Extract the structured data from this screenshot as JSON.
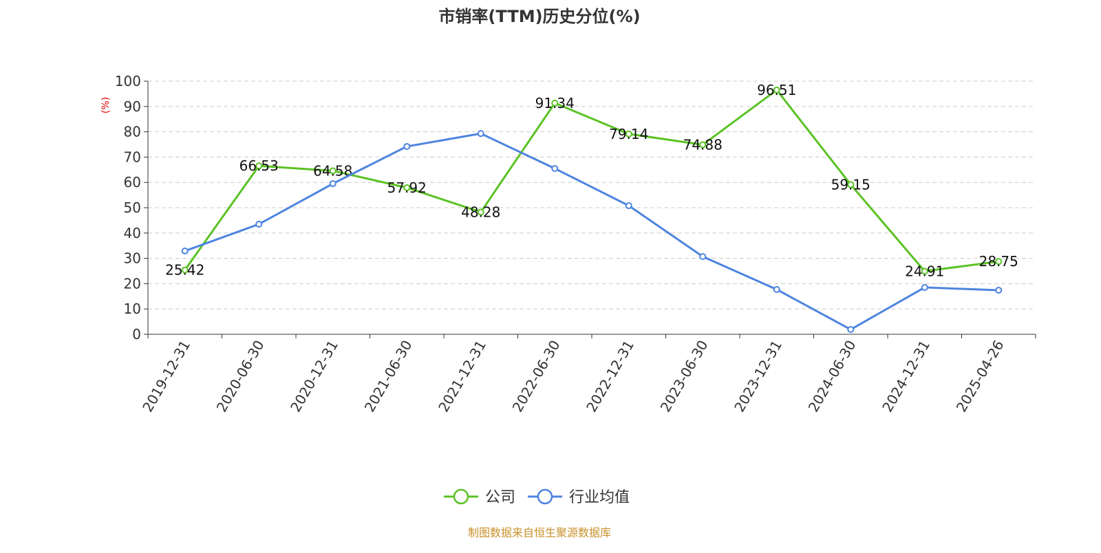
{
  "chart_data": {
    "type": "line",
    "title": "市销率(TTM)历史分位(%)",
    "ylabel": "(%)",
    "xlabel": "",
    "ylim": [
      0,
      100
    ],
    "yticks": [
      0,
      10,
      20,
      30,
      40,
      50,
      60,
      70,
      80,
      90,
      100
    ],
    "grid": true,
    "legend_position": "bottom-center",
    "categories": [
      "2019-12-31",
      "2020-06-30",
      "2020-12-31",
      "2021-06-30",
      "2021-12-31",
      "2022-06-30",
      "2022-12-31",
      "2023-06-30",
      "2023-12-31",
      "2024-06-30",
      "2024-12-31",
      "2025-04-26"
    ],
    "series": [
      {
        "name": "公司",
        "color": "#5bc224",
        "show_labels": true,
        "values": [
          25.42,
          66.53,
          64.58,
          57.92,
          48.28,
          91.34,
          79.14,
          74.88,
          96.51,
          59.15,
          24.91,
          28.75
        ]
      },
      {
        "name": "行业均值",
        "color": "#4d84e0",
        "show_labels": false,
        "values": [
          32.9,
          43.5,
          59.5,
          74.2,
          79.3,
          65.5,
          50.8,
          30.7,
          17.7,
          1.9,
          18.5,
          17.4
        ]
      }
    ]
  },
  "footer": "制图数据来自恒生聚源数据库"
}
